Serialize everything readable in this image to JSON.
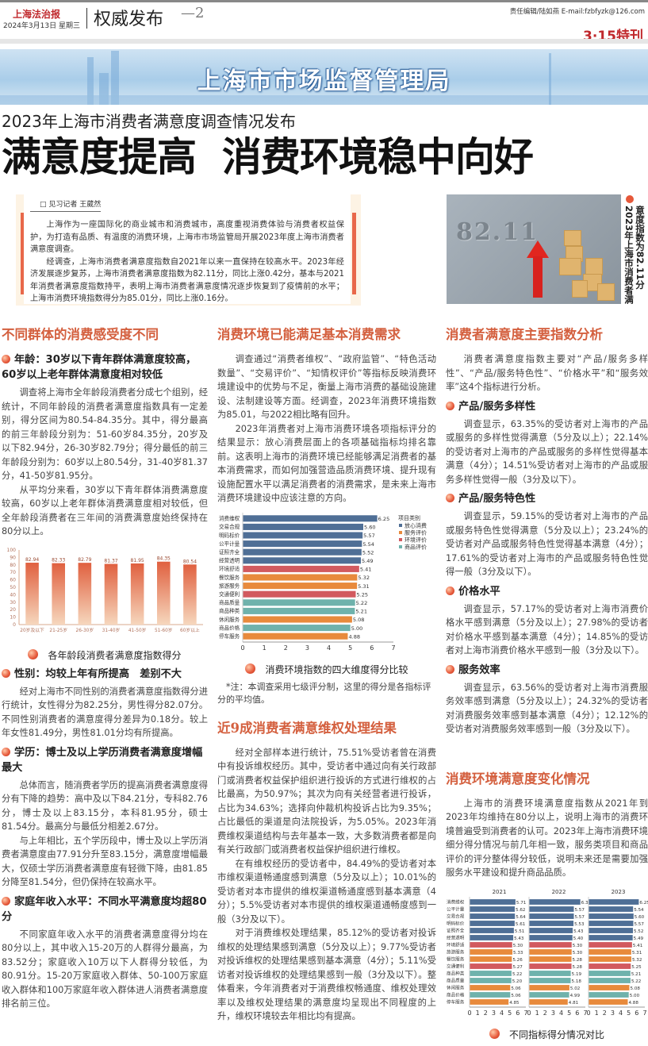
{
  "header": {
    "paper_name": "上海法治报",
    "date": "2024年3月13日 星期三",
    "section": "权威发布",
    "page_no": "—2",
    "editor": "责任编辑/陆如燕 E-mail:fzbfyzk@126.com",
    "special": "3·15特刊"
  },
  "banner": {
    "title": "上海市市场监督管理局"
  },
  "headline": {
    "kicker": "2023年上海市消费者满意度调查情况发布",
    "title": "满意度提高  消费环境稳中向好"
  },
  "intro": {
    "byline": "见习记者 王葳然",
    "paragraphs": [
      "上海作为一座国际化的商业城市和消费城市，高度重视消费体验与消费者权益保护，为打造有品质、有温度的消费环境，上海市市场监管局开展2023年度上海市消费者满意度调查。",
      "经调查，上海市消费者满意度指数自2021年以来一直保持在较高水平。2023年经济发展逐步复苏，上海市消费者满意度指数为82.11分，同比上涨0.42分，基本与2021年消费者满意度指数持平，表明上海市消费者满意度情况逐步恢复到了疫情前的水平；上海市消费环境指数得分为85.01分，同比上涨0.16分。"
    ]
  },
  "photo": {
    "number": "82.11",
    "caption": "2023年上海市消费者满意度指数为82.11分"
  },
  "colors": {
    "accent": "#d4603f",
    "fangxin": "#4f6f96",
    "fuwu": "#e88a3c",
    "huanjing": "#d25a5f",
    "shangpin": "#6fb2ac"
  },
  "columns": {
    "left": [
      {
        "t": "h2",
        "text": "不同群体的消费感受度不同"
      },
      {
        "t": "h3",
        "text": "年龄：30岁以下青年群体满意度较高，60岁以上老年群体满意度相对较低"
      },
      {
        "t": "p",
        "text": "调查将上海市全年龄段消费者分成七个组别，经统计，不同年龄段的消费者满意度指数具有一定差别，得分区间为80.54-84.35分。其中，得分最高的前三年龄段分别为：51-60岁84.35分，20岁及以下82.94分，26-30岁82.79分；得分最低的前三年龄段分别为：60岁以上80.54分，31-40岁81.37分，41-50岁81.95分。"
      },
      {
        "t": "p",
        "text": "从平均分来看，30岁以下青年群体消费满意度较高，60岁以上老年群体消费满意度相对较低，但全年龄段消费者在三年间的消费满意度始终保持在80分以上。"
      },
      {
        "t": "chart",
        "id": 0
      },
      {
        "t": "cap",
        "text": "各年龄段消费者满意度指数得分"
      },
      {
        "t": "h3",
        "text": "性别：均较上年有所提高　差别不大"
      },
      {
        "t": "p",
        "text": "经对上海市不同性别的消费者满意度指数得分进行统计，女性得分为82.25分，男性得分82.07分。不同性别消费者的满意度得分差异为0.18分。较上年女性81.49分，男性81.01分均有所提高。"
      },
      {
        "t": "h3",
        "text": "学历：博士及以上学历消费者满意度增幅最大"
      },
      {
        "t": "p",
        "text": "总体而言，随消费者学历的提高消费者满意度得分有下降的趋势：高中及以下84.21分，专科82.76分，博士及以上83.15分，本科81.95分，硕士81.54分。最高分与最低分相差2.67分。"
      },
      {
        "t": "p",
        "text": "与上年相比，五个学历段中，博士及以上学历消费者满意度由77.91分升至83.15分，满意度增幅最大，仅硕士学历消费者满意度有轻微下降，由81.85分降至81.54分，但仍保持在较高水平。"
      },
      {
        "t": "h3",
        "text": "家庭年收入水平：不同水平满意度均超80分"
      },
      {
        "t": "p",
        "text": "不同家庭年收入水平的消费者满意度得分均在80分以上，其中收入15-20万的人群得分最高，为83.52分；家庭收入10万以下人群得分较低，为80.91分。15-20万家庭收入群体、50-100万家庭收入群体和100万家庭年收入群体进人消费者满意度排名前三位。"
      }
    ],
    "middle": [
      {
        "t": "h2",
        "text": "消费环境已能满足基本消费需求"
      },
      {
        "t": "p",
        "text": "调查通过“消费者维权”、“政府监管”、“特色活动数量”、“交易评价”、“知情权评价”等指标反映消费环境建设中的优势与不足，衡量上海市消费的基础设施建设、法制建设等方面。经调查，2023年消费环境指数为85.01，与2022相比略有回升。"
      },
      {
        "t": "p",
        "text": "2023年消费者对上海市消费环境各项指标评分的结果显示：放心消费层面上的各项基础指标均排名靠前。这表明上海市的消费环境已经能够满足消费者的基本消费需求，而如何加强营造品质消费环境、提升现有设施配置水平以满足消费者的消费需求，是未来上海市消费环境建设中应该注意的方向。"
      },
      {
        "t": "chart",
        "id": 1
      },
      {
        "t": "cap",
        "text": "消费环境指数的四大维度得分比较"
      },
      {
        "t": "note",
        "text": "*注：本调查采用七级评分制，这里的得分是各指标评分的平均值。"
      },
      {
        "t": "h2",
        "text": "近9成消费者满意维权处理结果"
      },
      {
        "t": "p",
        "text": "经对全部样本进行统计，75.51%受访者曾在消费中有投诉维权经历。其中，受访者中通过向有关行政部门或消费者权益保护组织进行投诉的方式进行维权的占比最高，为50.97%；其次为向有关经营者进行投诉，占比为34.63%；选择向仲裁机构投诉占比为9.35%；占比最低的渠道是向法院投诉，为5.05%。2023年消费维权渠道结构与去年基本一致，大多数消费者都是向有关行政部门或消费者权益保护组织进行维权。"
      },
      {
        "t": "p",
        "text": "在有维权经历的受访者中，84.49%的受访者对本市维权渠道畅通度感到满意（5分及以上）；10.01%的受访者对本市提供的维权渠道畅通度感到基本满意（4分）；5.5%受访者对本市提供的维权渠道通畅度感到一般（3分及以下）。"
      },
      {
        "t": "p",
        "text": "对于消费维权处理结果，85.12%的受访者对投诉维权的处理结果感到满意（5分及以上）；9.77%受访者对投诉维权的处理结果感到基本满意（4分）；5.11%受访者对投诉维权的处理结果感到一般（3分及以下）。整体看来，今年消费者对于消费维权畅通度、维权处理效率以及维权处理结果的满意度均呈现出不同程度的上升，维权环境较去年相比均有提高。"
      }
    ],
    "right": [
      {
        "t": "h2",
        "text": "消费者满意度主要指数分析"
      },
      {
        "t": "p",
        "text": "消费者满意度指数主要对“产品/服务多样性”、“产品/服务特色性”、“价格水平”和“服务效率”这4个指标进行分析。"
      },
      {
        "t": "h3",
        "text": "产品/服务多样性"
      },
      {
        "t": "p",
        "text": "调查显示，63.35%的受访者对上海市的产品或服务的多样性觉得满意（5分及以上）；22.14%的受访者对上海市的产品或服务的多样性觉得基本满意（4分）；14.51%受访者对上海市的产品或服务多样性觉得一般（3分及以下）。"
      },
      {
        "t": "h3",
        "text": "产品/服务特色性"
      },
      {
        "t": "p",
        "text": "调查显示，59.15%的受访者对上海市的产品或服务特色性觉得满意（5分及以上）；23.24%的受访者对产品或服务特色性觉得基本满意（4分）；17.61%的受访者对上海市的产品或服务特色性觉得一般（3分及以下）。"
      },
      {
        "t": "h3",
        "text": "价格水平"
      },
      {
        "t": "p",
        "text": "调查显示，57.17%的受访者对上海市消费价格水平感到满意（5分及以上）；27.98%的受访者对价格水平感到基本满意（4分）；14.85%的受访者对上海市消费价格水平感到一般（3分及以下）。"
      },
      {
        "t": "h3",
        "text": "服务效率"
      },
      {
        "t": "p",
        "text": "调查显示，63.56%的受访者对上海市消费服务效率感到满意（5分及以上）；24.32%的受访者对消费服务效率感到基本满意（4分）；12.12%的受访者对消费服务效率感到一般（3分及以下）。"
      },
      {
        "t": "h2",
        "text": "消费环境满意度变化情况",
        "gap": true
      },
      {
        "t": "p",
        "text": "上海市的消费环境满意度指数从2021年到2023年均维持在80分以上，说明上海市的消费环境普遍受到消费者的认可。2023年上海市消费环境细分得分情况与前几年相一致，服务类项目和商品评价的评分整体得分较低，说明未来还是需要加强服务水平建设和提升商品品质。"
      },
      {
        "t": "chart",
        "id": 2
      },
      {
        "t": "cap",
        "text": "不同指标得分情况对比"
      }
    ]
  },
  "chart_data": [
    {
      "type": "bar",
      "title": "各年龄段消费者满意度指数得分",
      "categories": [
        "20岁及以下",
        "21-25岁",
        "26-30岁",
        "31-40岁",
        "41-50岁",
        "51-60岁",
        "60岁以上"
      ],
      "values": [
        82.94,
        82.33,
        82.79,
        81.37,
        81.95,
        84.35,
        80.54
      ],
      "ylim": [
        0,
        100
      ],
      "yticks": [
        0,
        10,
        20,
        30,
        40,
        50,
        60,
        70,
        80,
        90,
        100
      ],
      "grid": false
    },
    {
      "type": "bar",
      "orientation": "horizontal",
      "title": "消费环境指数的四大维度得分比较",
      "legend_title": "项目类别",
      "legend": [
        {
          "name": "放心消费",
          "color": "#4f6f96"
        },
        {
          "name": "服务评价",
          "color": "#e88a3c"
        },
        {
          "name": "环境评价",
          "color": "#d25a5f"
        },
        {
          "name": "商品评价",
          "color": "#6fb2ac"
        }
      ],
      "legend_position": "right",
      "categories": [
        "消费维权",
        "交易合规",
        "明码标价",
        "公平计量",
        "证照齐全",
        "经营透明",
        "环境舒适",
        "餐饮服务",
        "旅游服务",
        "交通便利",
        "商品质量",
        "商品种类",
        "休闲服务",
        "商品价格",
        "停车服务"
      ],
      "groups": [
        "放心消费",
        "放心消费",
        "放心消费",
        "放心消费",
        "放心消费",
        "放心消费",
        "环境评价",
        "服务评价",
        "服务评价",
        "环境评价",
        "商品评价",
        "商品评价",
        "服务评价",
        "商品评价",
        "服务评价"
      ],
      "values": [
        6.25,
        5.6,
        5.57,
        5.54,
        5.52,
        5.49,
        5.41,
        5.32,
        5.31,
        5.25,
        5.22,
        5.21,
        5.08,
        5.0,
        4.88
      ],
      "xlim": [
        0,
        7
      ],
      "xticks": [
        0,
        1,
        2,
        3,
        4,
        5,
        6,
        7
      ]
    },
    {
      "type": "bar",
      "orientation": "horizontal",
      "title": "不同指标得分情况对比",
      "xlim": [
        0,
        7
      ],
      "xticks": [
        0,
        1,
        2,
        3,
        4,
        5,
        6,
        7
      ],
      "categories": [
        "消费维权",
        "公平计量",
        "交易合规",
        "明码标价",
        "证照齐全",
        "经营透明",
        "环境舒适",
        "旅游服务",
        "餐饮服务",
        "交通便利",
        "商品种类",
        "商品质量",
        "休闲服务",
        "商品价格",
        "停车服务"
      ],
      "groups": [
        "放心消费",
        "放心消费",
        "放心消费",
        "放心消费",
        "放心消费",
        "放心消费",
        "环境评价",
        "服务评价",
        "服务评价",
        "环境评价",
        "商品评价",
        "商品评价",
        "服务评价",
        "商品评价",
        "服务评价"
      ],
      "series": [
        {
          "name": "2021",
          "values": [
            5.71,
            5.62,
            5.64,
            5.61,
            5.51,
            5.43,
            5.3,
            5.33,
            5.26,
            5.27,
            5.22,
            5.2,
            5.06,
            5.06,
            4.85
          ]
        },
        {
          "name": "2022",
          "values": [
            6.38,
            5.57,
            5.57,
            5.53,
            5.43,
            5.4,
            5.3,
            5.3,
            5.28,
            5.28,
            5.19,
            5.18,
            5.02,
            4.99,
            4.81
          ]
        },
        {
          "name": "2023",
          "values": [
            6.25,
            5.54,
            5.6,
            5.57,
            5.52,
            5.49,
            5.41,
            5.31,
            5.32,
            5.25,
            5.21,
            5.22,
            5.08,
            5.0,
            4.88
          ]
        }
      ]
    }
  ]
}
